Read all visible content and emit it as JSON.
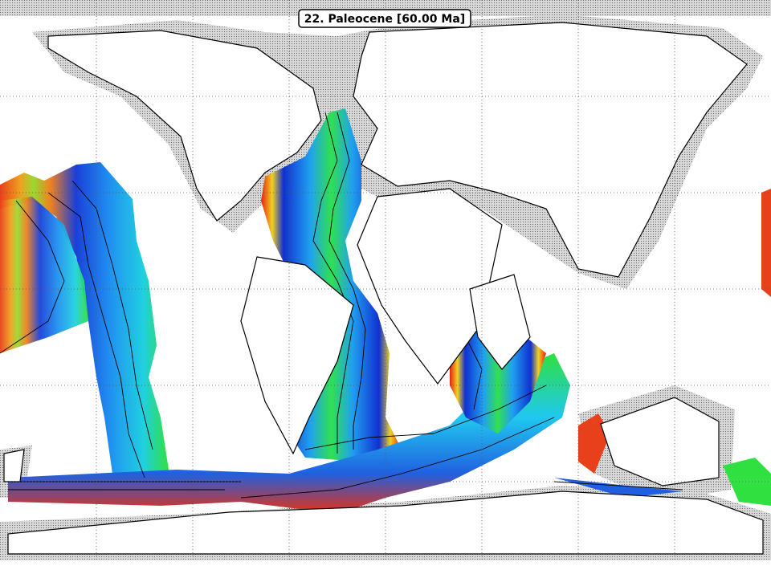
{
  "map": {
    "title": "22. Paleocene [60.00 Ma]"
  }
}
